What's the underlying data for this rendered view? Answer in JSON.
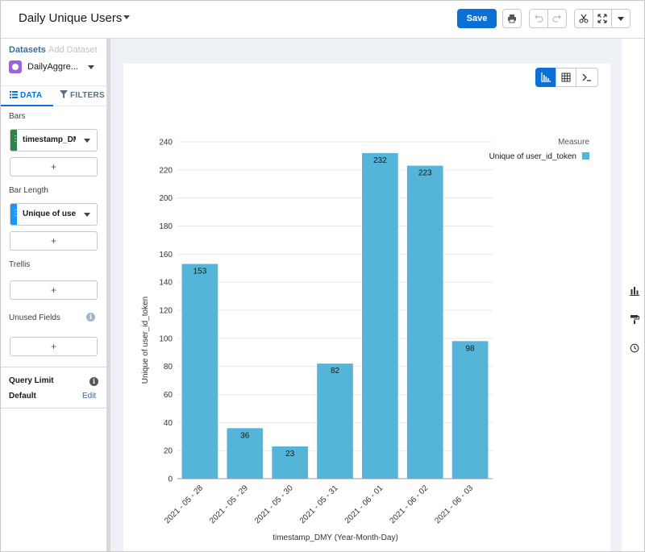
{
  "header": {
    "title": "Daily Unique Users",
    "save_label": "Save"
  },
  "sidebar": {
    "datasets_label": "Datasets",
    "add_dataset_label": "Add Dataset",
    "dataset_name": "DailyAggre...",
    "tab_data": "DATA",
    "tab_filters": "FILTERS",
    "bars_label": "Bars",
    "bars_field": "timestamp_DMY",
    "bar_length_label": "Bar Length",
    "bar_length_field": "Unique of user_id_token",
    "trellis_label": "Trellis",
    "unused_fields_label": "Unused Fields",
    "add_symbol": "+",
    "query_limit_label": "Query Limit",
    "query_limit_value": "Default",
    "edit_label": "Edit"
  },
  "colors": {
    "accent": "#0b70d5",
    "bar": "#54b5d9",
    "dataset_icon": "#9b63e0",
    "bars_grip": "#2e844a",
    "length_grip": "#1b96ff"
  },
  "icons": [
    "chart-icon",
    "table-icon",
    "console-icon",
    "undo-icon",
    "redo-icon",
    "cut-icon",
    "expand-icon",
    "print-icon",
    "paint-icon",
    "history-icon"
  ],
  "chart_data": {
    "type": "bar",
    "categories": [
      "2021 - 05 - 28",
      "2021 - 05 - 29",
      "2021 - 05 - 30",
      "2021 - 05 - 31",
      "2021 - 06 - 01",
      "2021 - 06 - 02",
      "2021 - 06 - 03"
    ],
    "series": [
      {
        "name": "Unique of user_id_token",
        "values": [
          153,
          36,
          23,
          82,
          232,
          223,
          98
        ]
      }
    ],
    "xlabel": "timestamp_DMY (Year-Month-Day)",
    "ylabel": "Unique of user_id_token",
    "ylim": [
      0,
      240
    ],
    "yticks": [
      0,
      20,
      40,
      60,
      80,
      100,
      120,
      140,
      160,
      180,
      200,
      220,
      240
    ],
    "legend_title": "Measure",
    "legend_position": "top-right",
    "grid": true,
    "data_labels": true
  }
}
